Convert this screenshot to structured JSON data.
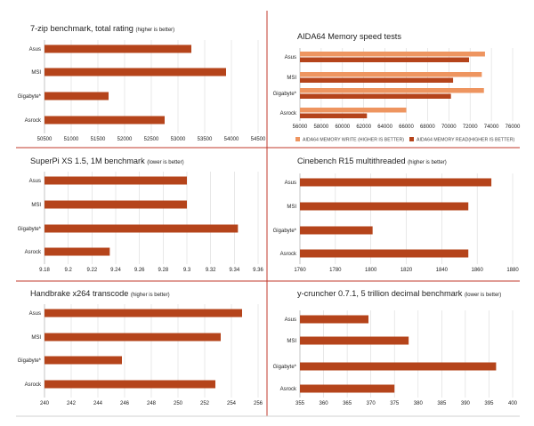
{
  "colors": {
    "bar": "#b5441b",
    "write": "#ee9560",
    "divider": "#c0392b",
    "grid": "#d9d9d9"
  },
  "chart_data": [
    {
      "type": "bar",
      "title": "7-zip benchmark, total rating",
      "note": "(higher is better)",
      "categories": [
        "Asus",
        "MSI",
        "Gigabyte*",
        "Asrock"
      ],
      "values": [
        53250,
        53900,
        51700,
        52750
      ],
      "xlim": [
        50500,
        54500
      ],
      "xticks": [
        "50500",
        "51000",
        "51500",
        "52000",
        "52500",
        "53000",
        "53500",
        "54000",
        "54500"
      ]
    },
    {
      "type": "bar",
      "title": "AIDA64 Memory speed tests",
      "note": "",
      "categories": [
        "Asus",
        "MSI",
        "Gigabyte*",
        "Asrock"
      ],
      "series": [
        {
          "name": "AIDA64 MEMORY WRITE (HIGHER IS BETTER)",
          "values": [
            73400,
            73100,
            73300,
            66000
          ]
        },
        {
          "name": "AIDA64 MEMORY READ(HIGHER IS BETTER)",
          "values": [
            71900,
            70400,
            70200,
            62300
          ]
        }
      ],
      "xlim": [
        56000,
        76000
      ],
      "xticks": [
        "56000",
        "58000",
        "60000",
        "62000",
        "64000",
        "66000",
        "68000",
        "70000",
        "72000",
        "74000",
        "76000"
      ]
    },
    {
      "type": "bar",
      "title": "SuperPi XS 1.5, 1M benchmark",
      "note": "(lower is better)",
      "categories": [
        "Asus",
        "MSI",
        "Gigabyte*",
        "Asrock"
      ],
      "values": [
        9.3,
        9.3,
        9.343,
        9.235
      ],
      "xlim": [
        9.18,
        9.36
      ],
      "xticks": [
        "9.18",
        "9.2",
        "9.22",
        "9.24",
        "9.26",
        "9.28",
        "9.3",
        "9.32",
        "9.34",
        "9.36"
      ]
    },
    {
      "type": "bar",
      "title": "Cinebench R15 multithreaded",
      "note": "(higher is better)",
      "categories": [
        "Asus",
        "MSI",
        "Gigabyte*",
        "Asrock"
      ],
      "values": [
        1868,
        1855,
        1801,
        1855
      ],
      "xlim": [
        1760,
        1880
      ],
      "xticks": [
        "1760",
        "1780",
        "1800",
        "1820",
        "1840",
        "1860",
        "1880"
      ]
    },
    {
      "type": "bar",
      "title": "Handbrake x264 transcode",
      "note": "(higher is better)",
      "categories": [
        "Asus",
        "MSI",
        "Gigabyte*",
        "Asrock"
      ],
      "values": [
        254.8,
        253.2,
        245.8,
        252.8
      ],
      "xlim": [
        240,
        256
      ],
      "xticks": [
        "240",
        "242",
        "244",
        "246",
        "248",
        "250",
        "252",
        "254",
        "256"
      ]
    },
    {
      "type": "bar",
      "title": "y-cruncher 0.7.1, 5 trillion decimal benchmark",
      "note": "(lower is better)",
      "categories": [
        "Asus",
        "MSI",
        "Gigabyte*",
        "Asrock"
      ],
      "values": [
        369.5,
        378,
        396.5,
        375
      ],
      "xlim": [
        355,
        400
      ],
      "xticks": [
        "355",
        "360",
        "365",
        "370",
        "375",
        "380",
        "385",
        "390",
        "395",
        "400"
      ]
    }
  ]
}
